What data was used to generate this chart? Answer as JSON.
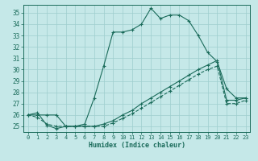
{
  "xlabel": "Humidex (Indice chaleur)",
  "xlim": [
    -0.5,
    23.5
  ],
  "ylim": [
    24.5,
    35.7
  ],
  "yticks": [
    25,
    26,
    27,
    28,
    29,
    30,
    31,
    32,
    33,
    34,
    35
  ],
  "xticks": [
    0,
    1,
    2,
    3,
    4,
    5,
    6,
    7,
    8,
    9,
    10,
    11,
    12,
    13,
    14,
    15,
    16,
    17,
    18,
    19,
    20,
    21,
    22,
    23
  ],
  "bg_color": "#c5e8e8",
  "grid_color": "#9ecece",
  "line_color": "#1a6b5a",
  "line1_y": [
    26.0,
    26.2,
    25.1,
    24.8,
    25.0,
    25.0,
    25.2,
    27.5,
    30.3,
    33.3,
    33.3,
    33.5,
    34.0,
    35.4,
    34.5,
    34.8,
    34.8,
    34.3,
    33.0,
    31.5,
    30.7,
    28.3,
    27.5,
    27.5
  ],
  "line2_y": [
    26.0,
    26.0,
    26.0,
    26.0,
    25.0,
    25.0,
    25.0,
    25.0,
    25.2,
    25.5,
    26.0,
    26.4,
    27.0,
    27.5,
    28.0,
    28.5,
    29.0,
    29.5,
    30.0,
    30.4,
    30.8,
    27.3,
    27.3,
    27.5
  ],
  "line3_y": [
    26.0,
    25.8,
    25.2,
    25.0,
    25.0,
    25.0,
    25.0,
    25.0,
    25.0,
    25.3,
    25.7,
    26.1,
    26.6,
    27.1,
    27.6,
    28.1,
    28.6,
    29.1,
    29.6,
    30.0,
    30.3,
    27.0,
    27.0,
    27.3
  ]
}
